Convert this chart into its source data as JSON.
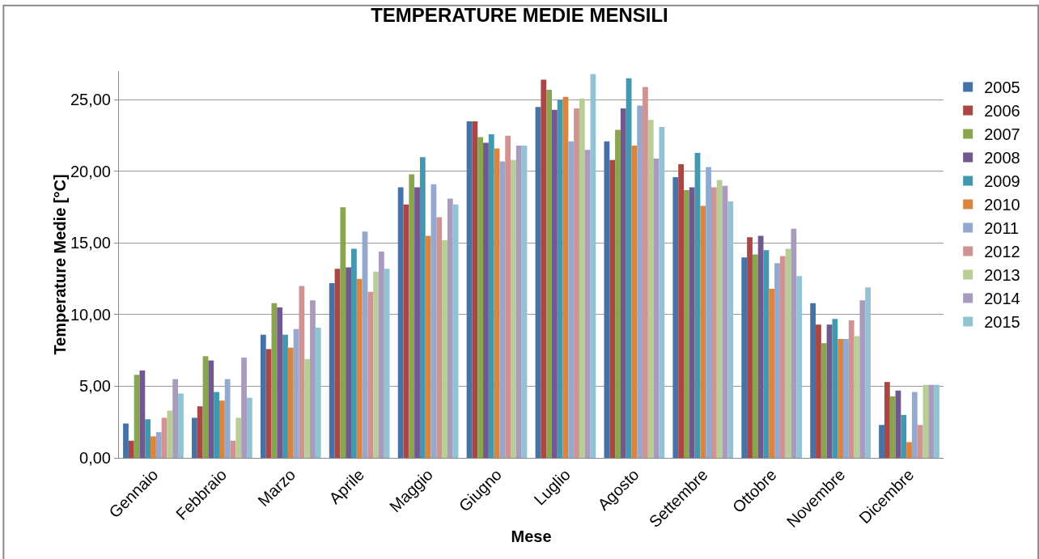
{
  "chart_data": {
    "type": "bar",
    "title": "TEMPERATURE MEDIE MENSILI",
    "xlabel": "Mese",
    "ylabel": "Temperature Medie [°C]",
    "categories": [
      "Gennaio",
      "Febbraio",
      "Marzo",
      "Aprile",
      "Maggio",
      "Giugno",
      "Luglio",
      "Agosto",
      "Settembre",
      "Ottobre",
      "Novembre",
      "Dicembre"
    ],
    "series": [
      {
        "name": "2005",
        "color": "#4572a7",
        "values": [
          2.4,
          2.8,
          8.6,
          12.2,
          18.9,
          23.5,
          24.5,
          22.1,
          19.6,
          14.0,
          10.8,
          2.3
        ]
      },
      {
        "name": "2006",
        "color": "#aa4643",
        "values": [
          1.2,
          3.6,
          7.6,
          13.2,
          17.7,
          23.5,
          26.4,
          20.8,
          20.5,
          15.4,
          9.3,
          5.3
        ]
      },
      {
        "name": "2007",
        "color": "#89a54e",
        "values": [
          5.8,
          7.1,
          10.8,
          17.5,
          19.8,
          22.4,
          25.7,
          22.9,
          18.7,
          14.2,
          8.0,
          4.3
        ]
      },
      {
        "name": "2008",
        "color": "#71588f",
        "values": [
          6.1,
          6.8,
          10.5,
          13.3,
          18.9,
          22.0,
          24.3,
          24.4,
          18.9,
          15.5,
          9.3,
          4.7
        ]
      },
      {
        "name": "2009",
        "color": "#4198af",
        "values": [
          2.7,
          4.6,
          8.6,
          14.6,
          21.0,
          22.6,
          25.0,
          26.5,
          21.3,
          14.5,
          9.7,
          3.0
        ]
      },
      {
        "name": "2010",
        "color": "#db843d",
        "values": [
          1.5,
          4.0,
          7.7,
          12.5,
          15.5,
          21.6,
          25.2,
          21.8,
          17.6,
          11.8,
          8.3,
          1.1
        ]
      },
      {
        "name": "2011",
        "color": "#93a9cf",
        "values": [
          1.8,
          5.5,
          9.0,
          15.8,
          19.1,
          20.7,
          22.1,
          24.6,
          20.3,
          13.6,
          8.3,
          4.6
        ]
      },
      {
        "name": "2012",
        "color": "#d19392",
        "values": [
          2.8,
          1.2,
          12.0,
          11.6,
          16.8,
          22.5,
          24.4,
          25.9,
          18.9,
          14.1,
          9.6,
          2.3
        ]
      },
      {
        "name": "2013",
        "color": "#b9cd96",
        "values": [
          3.3,
          2.8,
          6.9,
          13.0,
          15.2,
          20.8,
          25.1,
          23.6,
          19.4,
          14.6,
          8.5,
          5.1
        ]
      },
      {
        "name": "2014",
        "color": "#a99bbd",
        "values": [
          5.5,
          7.0,
          11.0,
          14.4,
          18.1,
          21.8,
          21.5,
          20.9,
          19.0,
          16.0,
          11.0,
          5.1
        ]
      },
      {
        "name": "2015",
        "color": "#92c3d5",
        "values": [
          4.5,
          4.2,
          9.1,
          13.2,
          17.7,
          21.8,
          26.8,
          23.1,
          17.9,
          12.7,
          11.9,
          5.1
        ]
      }
    ],
    "ylim": [
      0,
      27
    ],
    "yticks": [
      {
        "value": 0,
        "label": "0,00"
      },
      {
        "value": 5,
        "label": "5,00"
      },
      {
        "value": 10,
        "label": "10,00"
      },
      {
        "value": 15,
        "label": "15,00"
      },
      {
        "value": 20,
        "label": "20,00"
      },
      {
        "value": 25,
        "label": "25,00"
      }
    ],
    "grid": "y",
    "legend": "right"
  }
}
